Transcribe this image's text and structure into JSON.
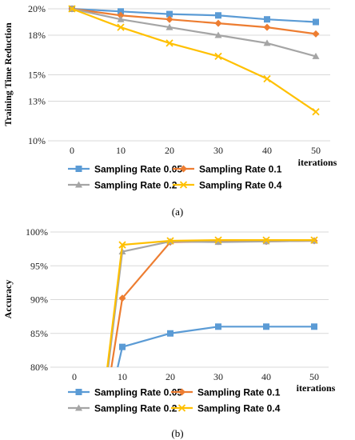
{
  "chart_data": [
    {
      "type": "line",
      "ylabel": "Training Time Reduction",
      "xlabel": "iterations",
      "caption": "(a)",
      "categories": [
        "0",
        "10",
        "20",
        "30",
        "40",
        "50"
      ],
      "x": [
        0,
        10,
        20,
        30,
        40,
        50
      ],
      "ylim": [
        10,
        20
      ],
      "yticks": [
        20,
        18,
        15,
        13,
        10
      ],
      "ytick_labels": [
        "20%",
        "18%",
        "15%",
        "13%",
        "10%"
      ],
      "grid": true,
      "legend_position": "bottom",
      "series": [
        {
          "name": "Sampling Rate 0.05",
          "color": "#5b9bd5",
          "marker": "square",
          "values": [
            20.0,
            19.8,
            19.6,
            19.5,
            19.2,
            19.0
          ]
        },
        {
          "name": "Sampling Rate 0.1",
          "color": "#ed7d31",
          "marker": "diamond",
          "values": [
            20.0,
            19.5,
            19.2,
            18.9,
            18.6,
            18.1
          ]
        },
        {
          "name": "Sampling Rate 0.2",
          "color": "#a5a5a5",
          "marker": "triangle",
          "values": [
            20.0,
            19.2,
            18.6,
            18.0,
            17.4,
            16.4
          ]
        },
        {
          "name": "Sampling Rate 0.4",
          "color": "#ffc000",
          "marker": "x",
          "values": [
            20.0,
            18.6,
            17.4,
            16.4,
            14.7,
            12.2
          ]
        }
      ]
    },
    {
      "type": "line",
      "ylabel": "Accuracy",
      "xlabel": "iterations",
      "caption": "(b)",
      "categories": [
        "0",
        "10",
        "20",
        "30",
        "40",
        "50"
      ],
      "x": [
        0,
        10,
        20,
        30,
        40,
        50
      ],
      "ylim": [
        80,
        100
      ],
      "yticks": [
        100,
        95,
        90,
        85,
        80
      ],
      "ytick_labels": [
        "100%",
        "95%",
        "90%",
        "85%",
        "80%"
      ],
      "grid": true,
      "legend_position": "bottom",
      "series": [
        {
          "name": "Sampling Rate 0.05",
          "color": "#5b9bd5",
          "marker": "square",
          "values": [
            null,
            83.0,
            85.0,
            86.0,
            86.0,
            86.0
          ],
          "entry_from": 69.0
        },
        {
          "name": "Sampling Rate 0.1",
          "color": "#ed7d31",
          "marker": "diamond",
          "values": [
            null,
            90.2,
            98.5,
            98.6,
            98.6,
            98.7
          ],
          "entry_from": 70.0
        },
        {
          "name": "Sampling Rate 0.2",
          "color": "#a5a5a5",
          "marker": "triangle",
          "values": [
            null,
            97.1,
            98.6,
            98.5,
            98.6,
            98.7
          ],
          "entry_from": 71.0
        },
        {
          "name": "Sampling Rate 0.4",
          "color": "#ffc000",
          "marker": "x",
          "values": [
            null,
            98.1,
            98.7,
            98.8,
            98.8,
            98.8
          ],
          "entry_from": 72.0
        }
      ]
    }
  ]
}
